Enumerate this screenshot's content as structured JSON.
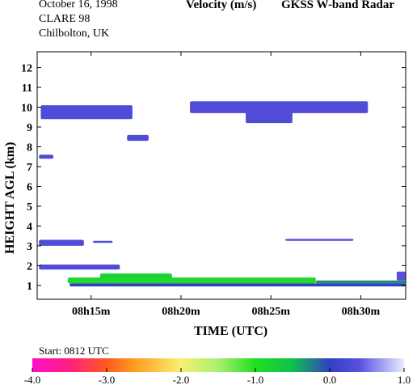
{
  "header": {
    "date": "October  16, 1998",
    "campaign": "CLARE 98",
    "location": "Chilbolton, UK",
    "quantity": "Velocity (m/s)",
    "instrument": "GKSS  W-band Radar",
    "start": "Start: 0812 UTC"
  },
  "chart_data": {
    "type": "heatmap",
    "title": "Velocity (m/s)",
    "xlabel": "TIME (UTC)",
    "ylabel": "HEIGHT AGL (km)",
    "x_units": "minutes after 08h00 UTC",
    "xlim": [
      12.0,
      32.5
    ],
    "ylim": [
      0.3,
      12.8
    ],
    "x_ticks": [
      {
        "value": 15,
        "label": "08h15m"
      },
      {
        "value": 20,
        "label": "08h20m"
      },
      {
        "value": 25,
        "label": "08h25m"
      },
      {
        "value": 30,
        "label": "08h30m"
      }
    ],
    "y_ticks": [
      {
        "value": 1,
        "label": "1"
      },
      {
        "value": 2,
        "label": "2"
      },
      {
        "value": 3,
        "label": "3"
      },
      {
        "value": 4,
        "label": "4"
      },
      {
        "value": 5,
        "label": "5"
      },
      {
        "value": 6,
        "label": "6"
      },
      {
        "value": 7,
        "label": "7"
      },
      {
        "value": 8,
        "label": "8"
      },
      {
        "value": 9,
        "label": "9"
      },
      {
        "value": 10,
        "label": "10"
      },
      {
        "value": 11,
        "label": "11"
      },
      {
        "value": 12,
        "label": "12"
      }
    ],
    "colorbar": {
      "ticks": [
        "-4.0",
        "-3.0",
        "-2.0",
        "-1.0",
        "0.0",
        "1.0"
      ],
      "tick_values": [
        -4,
        -3,
        -2,
        -1,
        0,
        1
      ],
      "range": [
        -4,
        1
      ],
      "stops": [
        {
          "v": -4.0,
          "color": "#ff10c8"
        },
        {
          "v": -3.5,
          "color": "#ff2080"
        },
        {
          "v": -3.0,
          "color": "#ff5a20"
        },
        {
          "v": -2.6,
          "color": "#ffa020"
        },
        {
          "v": -2.0,
          "color": "#f8f070"
        },
        {
          "v": -1.5,
          "color": "#a8f070"
        },
        {
          "v": -1.0,
          "color": "#20e020"
        },
        {
          "v": -0.5,
          "color": "#10c050"
        },
        {
          "v": 0.0,
          "color": "#3040c0"
        },
        {
          "v": 0.4,
          "color": "#5a50e0"
        },
        {
          "v": 1.0,
          "color": "#e8ecff"
        }
      ]
    },
    "echoes": [
      {
        "feature": "upper cirrus band",
        "x0": 12.2,
        "x1": 17.3,
        "y0": 9.4,
        "y1": 10.1,
        "velocity": 0.3
      },
      {
        "feature": "upper cirrus band",
        "x0": 20.5,
        "x1": 30.4,
        "y0": 9.7,
        "y1": 10.3,
        "velocity": 0.3
      },
      {
        "feature": "cirrus fall streak",
        "x0": 23.6,
        "x1": 26.2,
        "y0": 9.2,
        "y1": 9.8,
        "velocity": 0.3
      },
      {
        "feature": "isolated echo",
        "x0": 17.0,
        "x1": 18.2,
        "y0": 8.3,
        "y1": 8.6,
        "velocity": 0.3
      },
      {
        "feature": "isolated echo",
        "x0": 12.1,
        "x1": 12.9,
        "y0": 7.4,
        "y1": 7.6,
        "velocity": 0.3
      },
      {
        "feature": "mid-level layer",
        "x0": 12.1,
        "x1": 14.6,
        "y0": 3.0,
        "y1": 3.3,
        "velocity": 0.3
      },
      {
        "feature": "mid-level layer",
        "x0": 15.1,
        "x1": 16.2,
        "y0": 3.15,
        "y1": 3.25,
        "velocity": 0.3
      },
      {
        "feature": "mid-level layer",
        "x0": 25.8,
        "x1": 29.6,
        "y0": 3.25,
        "y1": 3.35,
        "velocity": 0.3
      },
      {
        "feature": "low layer",
        "x0": 12.1,
        "x1": 16.6,
        "y0": 1.8,
        "y1": 2.05,
        "velocity": 0.3
      },
      {
        "feature": "boundary layer",
        "x0": 13.7,
        "x1": 27.5,
        "y0": 1.1,
        "y1": 1.4,
        "velocity": -0.9
      },
      {
        "feature": "boundary layer",
        "x0": 15.5,
        "x1": 19.5,
        "y0": 1.35,
        "y1": 1.6,
        "velocity": -0.8
      },
      {
        "feature": "boundary layer",
        "x0": 13.8,
        "x1": 32.5,
        "y0": 0.95,
        "y1": 1.1,
        "velocity": 0.0
      },
      {
        "feature": "boundary layer",
        "x0": 27.5,
        "x1": 32.5,
        "y0": 1.1,
        "y1": 1.25,
        "velocity": -0.3
      },
      {
        "feature": "boundary layer",
        "x0": 32.0,
        "x1": 32.5,
        "y0": 1.25,
        "y1": 1.7,
        "velocity": 0.4
      }
    ]
  }
}
